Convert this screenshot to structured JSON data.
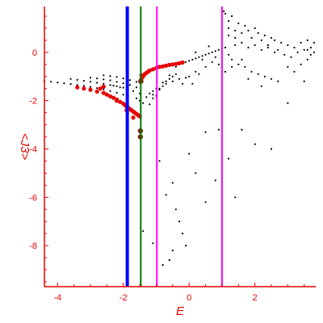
{
  "chart_data": {
    "type": "scatter",
    "title": "",
    "xlabel": "E",
    "ylabel": "<J3>",
    "xlim": [
      -4.4,
      3.85
    ],
    "ylim": [
      -9.7,
      1.9
    ],
    "grid": false,
    "legend": "none",
    "x_ticks": [
      -4,
      -2,
      0,
      2
    ],
    "y_ticks": [
      0,
      -2,
      -4,
      -6,
      -8
    ],
    "axis_color": "#e60000",
    "vertical_lines": [
      {
        "x": -1.88,
        "color": "#0000ff"
      },
      {
        "x": -1.47,
        "color": "#007700"
      },
      {
        "x": -0.98,
        "color": "#ff00ff"
      },
      {
        "x": 1.0,
        "color": "#ff00ff"
      }
    ],
    "series": [
      {
        "color": "#000000",
        "marker": "small-dot",
        "points": [
          [
            -4.4,
            -1.2
          ],
          [
            -4.2,
            -1.22
          ],
          [
            -4.0,
            -1.25
          ],
          [
            -3.8,
            -1.28
          ],
          [
            -3.6,
            -1.31
          ],
          [
            -3.4,
            -1.35
          ],
          [
            -3.2,
            -1.39
          ],
          [
            -3.0,
            -1.43
          ],
          [
            -2.8,
            -1.48
          ],
          [
            -2.6,
            -1.53
          ],
          [
            -2.4,
            -1.6
          ],
          [
            -2.2,
            -1.67
          ],
          [
            -2.0,
            -1.75
          ],
          [
            -1.9,
            -1.8
          ],
          [
            -3.6,
            -1.1
          ],
          [
            -3.4,
            -1.14
          ],
          [
            -3.2,
            -1.18
          ],
          [
            -3.0,
            -1.22
          ],
          [
            -2.8,
            -1.26
          ],
          [
            -2.6,
            -1.3
          ],
          [
            -2.4,
            -1.35
          ],
          [
            -2.2,
            -1.4
          ],
          [
            -2.0,
            -1.46
          ],
          [
            -3.0,
            -1.05
          ],
          [
            -2.8,
            -1.08
          ],
          [
            -2.6,
            -1.12
          ],
          [
            -2.4,
            -1.16
          ],
          [
            -2.2,
            -1.22
          ],
          [
            -2.0,
            -1.28
          ],
          [
            -1.8,
            -1.35
          ],
          [
            -1.6,
            -1.45
          ],
          [
            -2.6,
            -0.95
          ],
          [
            -2.4,
            -0.98
          ],
          [
            -2.2,
            -1.02
          ],
          [
            -2.0,
            -1.08
          ],
          [
            -1.8,
            -1.15
          ],
          [
            -1.6,
            -1.22
          ],
          [
            -2.3,
            -1.38
          ],
          [
            -2.1,
            -1.45
          ],
          [
            -1.9,
            -1.52
          ],
          [
            -1.7,
            -1.6
          ],
          [
            -1.5,
            -1.7
          ],
          [
            -1.6,
            -1.9
          ],
          [
            -1.5,
            -2.0
          ],
          [
            -1.4,
            -2.1
          ],
          [
            -1.3,
            -1.85
          ],
          [
            -1.2,
            -1.7
          ],
          [
            -1.1,
            -1.6
          ],
          [
            -1.0,
            -1.5
          ],
          [
            -1.1,
            -1.9
          ],
          [
            -1.0,
            -1.8
          ],
          [
            -0.9,
            -1.5
          ],
          [
            -0.8,
            -1.4
          ],
          [
            -0.7,
            -1.3
          ],
          [
            -0.6,
            -1.1
          ],
          [
            -0.5,
            -1.2
          ],
          [
            -1.2,
            -2.15
          ],
          [
            -1.1,
            -1.75
          ],
          [
            -0.9,
            -1.55
          ],
          [
            -0.8,
            -1.25
          ],
          [
            -0.7,
            -1.2
          ],
          [
            -0.6,
            -0.95
          ],
          [
            -0.5,
            -1.0
          ],
          [
            -0.4,
            -0.9
          ],
          [
            -0.3,
            -1.1
          ],
          [
            -0.2,
            -1.3
          ],
          [
            -0.1,
            -1.05
          ],
          [
            0.0,
            -1.0
          ],
          [
            0.1,
            -1.3
          ],
          [
            0.2,
            -0.8
          ],
          [
            -0.4,
            -0.6
          ],
          [
            -0.3,
            -0.5
          ],
          [
            -0.2,
            -0.45
          ],
          [
            -0.1,
            -0.4
          ],
          [
            0.0,
            -0.35
          ],
          [
            0.1,
            -0.3
          ],
          [
            0.2,
            -0.25
          ],
          [
            0.3,
            -0.2
          ],
          [
            0.4,
            -0.15
          ],
          [
            0.5,
            -0.1
          ],
          [
            0.6,
            -0.05
          ],
          [
            0.7,
            0.0
          ],
          [
            0.8,
            0.05
          ],
          [
            0.9,
            0.1
          ],
          [
            1.0,
            0.15
          ],
          [
            1.1,
            0.2
          ],
          [
            0.2,
            0.0
          ],
          [
            0.4,
            -0.3
          ],
          [
            0.6,
            0.25
          ],
          [
            0.8,
            -0.2
          ],
          [
            1.0,
            0.4
          ],
          [
            1.2,
            -0.1
          ],
          [
            1.4,
            0.6
          ],
          [
            1.6,
            -0.3
          ],
          [
            1.0,
            1.8
          ],
          [
            1.05,
            1.7
          ],
          [
            1.2,
            1.3
          ],
          [
            1.3,
            1.5
          ],
          [
            1.4,
            0.9
          ],
          [
            1.5,
            1.2
          ],
          [
            1.6,
            0.8
          ],
          [
            1.7,
            1.1
          ],
          [
            1.8,
            0.9
          ],
          [
            1.9,
            0.6
          ],
          [
            2.0,
            1.0
          ],
          [
            2.1,
            0.8
          ],
          [
            2.2,
            0.5
          ],
          [
            2.3,
            0.7
          ],
          [
            2.4,
            0.3
          ],
          [
            2.5,
            0.6
          ],
          [
            1.2,
            0.7
          ],
          [
            1.4,
            0.3
          ],
          [
            1.6,
            0.4
          ],
          [
            1.8,
            0.2
          ],
          [
            2.0,
            0.3
          ],
          [
            2.2,
            0.1
          ],
          [
            2.4,
            0.2
          ],
          [
            2.6,
            0.0
          ],
          [
            2.6,
            0.5
          ],
          [
            2.7,
            0.1
          ],
          [
            2.8,
            0.4
          ],
          [
            2.9,
            -0.1
          ],
          [
            3.0,
            0.3
          ],
          [
            3.1,
            -0.2
          ],
          [
            3.2,
            0.2
          ],
          [
            3.3,
            0.0
          ],
          [
            3.4,
            0.4
          ],
          [
            3.5,
            0.1
          ],
          [
            3.6,
            0.5
          ],
          [
            3.7,
            0.2
          ],
          [
            3.8,
            0.4
          ],
          [
            3.8,
            0.0
          ],
          [
            3.7,
            -0.1
          ],
          [
            3.6,
            0.1
          ],
          [
            1.3,
            -0.3
          ],
          [
            1.5,
            -0.5
          ],
          [
            1.7,
            -0.6
          ],
          [
            1.9,
            -0.8
          ],
          [
            2.1,
            -0.9
          ],
          [
            2.3,
            -1.0
          ],
          [
            2.5,
            -1.1
          ],
          [
            2.7,
            -1.2
          ],
          [
            3.0,
            -0.6
          ],
          [
            3.2,
            -0.8
          ],
          [
            3.4,
            -0.5
          ],
          [
            3.6,
            -0.3
          ],
          [
            3.5,
            -1.2
          ],
          [
            3.0,
            -2.1
          ],
          [
            2.2,
            -1.4
          ],
          [
            1.8,
            -1.1
          ],
          [
            0.9,
            -0.5
          ],
          [
            1.1,
            -0.8
          ],
          [
            1.3,
            -0.6
          ],
          [
            0.7,
            -0.4
          ],
          [
            0.5,
            -0.6
          ],
          [
            0.3,
            -0.9
          ],
          [
            1.1,
            1.6
          ],
          [
            1.2,
            1.0
          ],
          [
            -0.9,
            -4.5
          ],
          [
            -0.7,
            -5.9
          ],
          [
            -0.5,
            -5.4
          ],
          [
            -0.4,
            -6.5
          ],
          [
            -0.3,
            -7.0
          ],
          [
            -0.2,
            -7.5
          ],
          [
            -0.1,
            -8.0
          ],
          [
            0.0,
            -4.2
          ],
          [
            0.2,
            -5.0
          ],
          [
            0.5,
            -6.2
          ],
          [
            0.8,
            -5.3
          ],
          [
            1.0,
            -7.9
          ],
          [
            0.5,
            -3.3
          ],
          [
            0.9,
            -3.2
          ],
          [
            1.6,
            -3.2
          ],
          [
            2.0,
            -3.8
          ],
          [
            2.5,
            -4.0
          ],
          [
            1.2,
            -4.4
          ],
          [
            1.4,
            -6.0
          ],
          [
            -0.5,
            -8.2
          ],
          [
            -1.4,
            -7.4
          ],
          [
            -1.1,
            -7.9
          ],
          [
            -0.8,
            -8.8
          ],
          [
            -0.6,
            -8.6
          ]
        ]
      },
      {
        "color": "#e60000",
        "marker": "dot",
        "points": [
          [
            -3.4,
            -1.45
          ],
          [
            -3.2,
            -1.5
          ],
          [
            -3.0,
            -1.55
          ],
          [
            -2.8,
            -1.62
          ],
          [
            -2.6,
            -1.68
          ],
          [
            -2.5,
            -1.75
          ],
          [
            -2.4,
            -1.82
          ],
          [
            -2.3,
            -1.88
          ],
          [
            -2.2,
            -1.95
          ],
          [
            -2.1,
            -2.05
          ],
          [
            -2.0,
            -2.12
          ],
          [
            -1.95,
            -2.18
          ],
          [
            -1.9,
            -2.25
          ],
          [
            -1.85,
            -2.3
          ],
          [
            -1.8,
            -2.35
          ],
          [
            -1.75,
            -2.4
          ],
          [
            -1.7,
            -2.45
          ],
          [
            -1.65,
            -2.5
          ],
          [
            -1.6,
            -2.55
          ],
          [
            -1.55,
            -2.6
          ],
          [
            -1.5,
            -2.65
          ],
          [
            -2.7,
            -1.5
          ],
          [
            -2.6,
            -1.42
          ],
          [
            -2.2,
            -2.0
          ],
          [
            -1.9,
            -2.4
          ],
          [
            -1.7,
            -2.7
          ],
          [
            -1.45,
            -1.2
          ],
          [
            -1.4,
            -1.0
          ],
          [
            -1.35,
            -0.9
          ],
          [
            -1.3,
            -0.85
          ],
          [
            -1.25,
            -0.8
          ],
          [
            -1.2,
            -0.75
          ],
          [
            -1.1,
            -0.7
          ],
          [
            -1.0,
            -0.65
          ],
          [
            -0.9,
            -0.6
          ],
          [
            -0.8,
            -0.58
          ],
          [
            -0.7,
            -0.55
          ],
          [
            -0.6,
            -0.52
          ],
          [
            -0.5,
            -0.5
          ],
          [
            -0.4,
            -0.48
          ],
          [
            -0.3,
            -0.45
          ],
          [
            -0.2,
            -0.42
          ],
          [
            -1.45,
            -1.1
          ],
          [
            -1.45,
            -0.95
          ]
        ]
      },
      {
        "color": "#8b1a00",
        "marker": "large-dot",
        "points": [
          [
            -1.48,
            -3.25
          ],
          [
            -1.48,
            -3.5
          ],
          [
            -1.47,
            -1.2
          ]
        ]
      }
    ]
  }
}
